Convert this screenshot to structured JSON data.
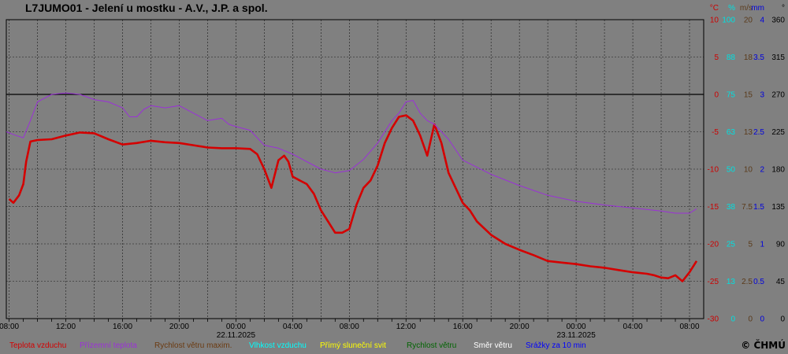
{
  "title": "L7JUMO01 - Jelení u mostku - A.V., J.P. a spol.",
  "copyright": "© ČHMÚ",
  "colors": {
    "background": "#808080",
    "temperature": "#d40000",
    "ground_temperature": "#9b30d8",
    "gust": "#8b4513",
    "humidity": "#00ffff",
    "sunshine": "#ffff00",
    "wind_speed": "#006400",
    "wind_direction": "#ffffff",
    "precipitation": "#0000ff",
    "unit_celsius": "#cc0000",
    "unit_percent": "#00e0e0",
    "unit_ms": "#5a3a1a",
    "unit_mm": "#0000dd"
  },
  "legend": [
    {
      "label": "Teplota vzduchu",
      "color": "#d40000"
    },
    {
      "label": "Přízemní teplota",
      "color": "#9b30d8"
    },
    {
      "label": "Rychlost větru maxim.",
      "color": "#6b3a10"
    },
    {
      "label": "Vlhkost vzduchu",
      "color": "#00ffff"
    },
    {
      "label": "Přímý sluneční svit",
      "color": "#ffff00"
    },
    {
      "label": "Rychlost větru",
      "color": "#006400"
    },
    {
      "label": "Směr větru",
      "color": "#ffffff"
    },
    {
      "label": "Srážky za 10 min",
      "color": "#0000ff"
    }
  ],
  "chart_data": {
    "type": "line",
    "title": "L7JUMO01 - Jelení u mostku - A.V., J.P. a spol.",
    "grid": true,
    "x_ticks": [
      "08:00",
      "12:00",
      "16:00",
      "20:00",
      "00:00",
      "04:00",
      "08:00",
      "12:00",
      "16:00",
      "20:00",
      "00:00",
      "04:00",
      "08:00"
    ],
    "x_tick_hours": [
      0,
      4,
      8,
      12,
      16,
      20,
      24,
      28,
      32,
      36,
      40,
      44,
      48
    ],
    "date_labels": [
      {
        "text": "22.11.2025",
        "hour": 16
      },
      {
        "text": "23.11.2025",
        "hour": 40
      }
    ],
    "xlim": [
      -0.2,
      49
    ],
    "y_axes": [
      {
        "unit": "°C",
        "range": [
          -30,
          10
        ],
        "ticks": [
          "10",
          "5",
          "0",
          "-5",
          "-10",
          "-15",
          "-20",
          "-25",
          "-30"
        ],
        "color": "#cc0000"
      },
      {
        "unit": "%",
        "range": [
          0,
          100
        ],
        "ticks": [
          "100",
          "88",
          "75",
          "63",
          "50",
          "38",
          "25",
          "13",
          "0"
        ],
        "color": "#00e0e0"
      },
      {
        "unit": "m/s",
        "range": [
          0,
          20
        ],
        "ticks": [
          "20",
          "18",
          "15",
          "13",
          "10",
          "7.5",
          "5",
          "2.5",
          "0"
        ],
        "color": "#5a3a1a"
      },
      {
        "unit": "mm",
        "range": [
          0,
          4
        ],
        "ticks": [
          "4",
          "3.5",
          "3",
          "2.5",
          "2",
          "1.5",
          "1",
          "0.5",
          "0"
        ],
        "color": "#0000dd"
      },
      {
        "unit": "°",
        "range": [
          0,
          360
        ],
        "ticks": [
          "360",
          "315",
          "270",
          "225",
          "180",
          "135",
          "90",
          "45",
          "0"
        ],
        "color": "#000000"
      }
    ],
    "series": [
      {
        "name": "Teplota vzduchu",
        "unit": "°C",
        "x": [
          0,
          0.3,
          0.7,
          1,
          1.2,
          1.5,
          2,
          3,
          4,
          5,
          6,
          7,
          8,
          9,
          10,
          11,
          12,
          13,
          14,
          15,
          16,
          17,
          17.5,
          18,
          18.5,
          19,
          19.4,
          19.7,
          20,
          20.5,
          21,
          21.5,
          22,
          22.5,
          23,
          23.5,
          24,
          24.5,
          25,
          25.5,
          26,
          26.5,
          27,
          27.5,
          28,
          28.5,
          29,
          29.5,
          30,
          30.5,
          31,
          31.5,
          32,
          32.5,
          33,
          34,
          35,
          36,
          37,
          38,
          39,
          40,
          41,
          42,
          43,
          44,
          45,
          45.5,
          46,
          46.5,
          47,
          47.5,
          48,
          48.5
        ],
        "y": [
          -14,
          -14.5,
          -13.5,
          -12,
          -9,
          -6.3,
          -6.1,
          -6,
          -5.5,
          -5.1,
          -5.2,
          -6,
          -6.7,
          -6.5,
          -6.2,
          -6.4,
          -6.5,
          -6.8,
          -7.1,
          -7.2,
          -7.2,
          -7.3,
          -8,
          -10,
          -12.5,
          -8.8,
          -8.2,
          -9,
          -11,
          -11.5,
          -12,
          -13.3,
          -15.5,
          -17,
          -18.5,
          -18.5,
          -18,
          -14.8,
          -12.5,
          -11.5,
          -9.5,
          -6.5,
          -4.5,
          -3,
          -2.8,
          -3.5,
          -5.5,
          -8.2,
          -4,
          -6.5,
          -10.5,
          -12.5,
          -14.5,
          -15.5,
          -17,
          -18.8,
          -20,
          -20.8,
          -21.5,
          -22.3,
          -22.5,
          -22.7,
          -23,
          -23.2,
          -23.5,
          -23.8,
          -24,
          -24.2,
          -24.5,
          -24.6,
          -24.2,
          -25,
          -23.8,
          -22.3
        ]
      },
      {
        "name": "Přízemní teplota",
        "unit": "°C",
        "x": [
          -0.2,
          0.5,
          1,
          1.5,
          2,
          3,
          4,
          5,
          6,
          7,
          8,
          8.5,
          9,
          9.5,
          10,
          11,
          12,
          13,
          14,
          15,
          15.5,
          16,
          17,
          18,
          19,
          20,
          21,
          22,
          23,
          24,
          25,
          26,
          27,
          27.5,
          28,
          28.5,
          29,
          29.5,
          30,
          30.5,
          31,
          32,
          34,
          36,
          38,
          40,
          42,
          44,
          46,
          47,
          48,
          48.5
        ],
        "y": [
          -5,
          -5.5,
          -5.8,
          -3.5,
          -1,
          0,
          0.2,
          0,
          -0.7,
          -1,
          -1.8,
          -3,
          -3,
          -2,
          -1.5,
          -1.8,
          -1.5,
          -2.5,
          -3.5,
          -3.2,
          -4,
          -4.3,
          -4.8,
          -6.8,
          -7.2,
          -8,
          -9,
          -10,
          -10.5,
          -10.2,
          -8.7,
          -6.5,
          -3.5,
          -2.5,
          -1,
          -0.8,
          -2.5,
          -3.5,
          -4,
          -5,
          -6,
          -8.8,
          -10.7,
          -12.2,
          -13.5,
          -14.3,
          -14.8,
          -15.2,
          -15.6,
          -15.9,
          -15.9,
          -15.3
        ]
      }
    ]
  }
}
